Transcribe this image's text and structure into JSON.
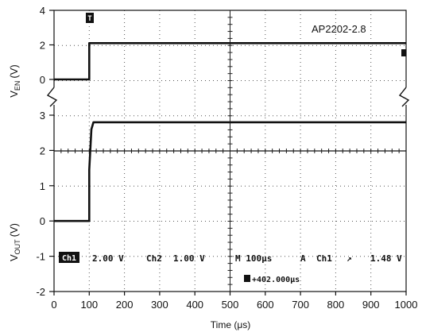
{
  "chart_data": [
    {
      "type": "line",
      "title": "",
      "model": "AP2202-2.8",
      "ylabel": "V_EN (V)",
      "ylabel_main": "V",
      "ylabel_sub": "EN",
      "ylabel_unit": "(V)",
      "ylim": [
        0,
        4
      ],
      "yticks": [
        "4",
        "2",
        "0"
      ],
      "xlabel": "Time (μs)",
      "xlim": [
        0,
        1000
      ],
      "series": [
        {
          "x": [
            0,
            100,
            100,
            1000
          ],
          "values": [
            0,
            0,
            2.1,
            2.1
          ]
        }
      ],
      "trigger_marker": "T"
    },
    {
      "type": "line",
      "title": "",
      "ylabel": "V_OUT (V)",
      "ylabel_main": "V",
      "ylabel_sub": "OUT",
      "ylabel_unit": "(V)",
      "ylim": [
        -2,
        3
      ],
      "yticks": [
        "3",
        "2",
        "1",
        "0",
        "-1",
        "-2"
      ],
      "xlabel": "Time (μs)",
      "xlim": [
        0,
        1000
      ],
      "xticks": [
        "0",
        "100",
        "200",
        "300",
        "400",
        "500",
        "600",
        "700",
        "800",
        "900",
        "1000"
      ],
      "series": [
        {
          "x": [
            0,
            100,
            100,
            106,
            112,
            1000
          ],
          "values": [
            0,
            0,
            1.45,
            2.6,
            2.8,
            2.8
          ]
        }
      ]
    }
  ],
  "scope_readout": {
    "ch1_tag": "Ch1",
    "ch1_scale": "2.00 V",
    "ch2_tag": "Ch2",
    "ch2_scale": "1.00 V",
    "timebase": "M 100μs",
    "trigger_mode": "A",
    "trigger_source": "Ch1",
    "trigger_slope": "↗",
    "trigger_level": "1.48 V",
    "delay": "+402.000μs"
  },
  "colors": {
    "trace": "#111111",
    "grid": "#555555",
    "background": "#ffffff"
  }
}
